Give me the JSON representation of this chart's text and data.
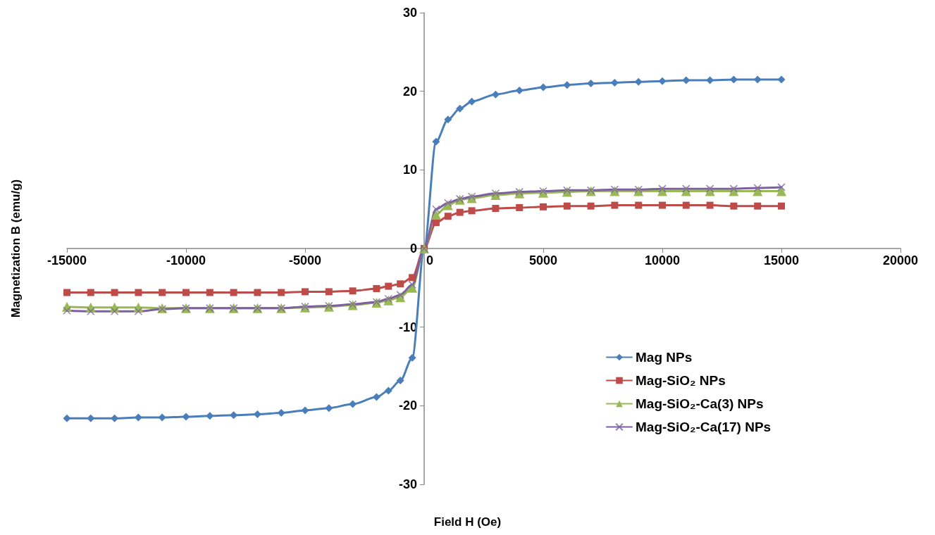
{
  "chart_data": {
    "type": "line",
    "xlabel": "Field H (Oe)",
    "ylabel": "Magnetization B (emu/g)",
    "x": [
      -15000,
      -14000,
      -13000,
      -12000,
      -11000,
      -10000,
      -9000,
      -8000,
      -7000,
      -6000,
      -5000,
      -4000,
      -3000,
      -2000,
      -1500,
      -1000,
      -500,
      0,
      500,
      1000,
      1500,
      2000,
      3000,
      4000,
      5000,
      6000,
      7000,
      8000,
      9000,
      10000,
      11000,
      12000,
      13000,
      14000,
      15000
    ],
    "series": [
      {
        "name": "Mag NPs",
        "color": "#4a7ebb",
        "marker": "diamond",
        "values": [
          -21.6,
          -21.6,
          -21.6,
          -21.5,
          -21.5,
          -21.4,
          -21.3,
          -21.2,
          -21.1,
          -20.9,
          -20.6,
          -20.3,
          -19.8,
          -18.9,
          -18.1,
          -16.8,
          -13.9,
          0,
          13.6,
          16.4,
          17.8,
          18.7,
          19.6,
          20.1,
          20.5,
          20.8,
          21.0,
          21.1,
          21.2,
          21.3,
          21.4,
          21.4,
          21.5,
          21.5,
          21.5
        ]
      },
      {
        "name": "Mag-SiO₂ NPs",
        "color": "#be4b48",
        "marker": "square",
        "values": [
          -5.6,
          -5.6,
          -5.6,
          -5.6,
          -5.6,
          -5.6,
          -5.6,
          -5.6,
          -5.6,
          -5.6,
          -5.5,
          -5.5,
          -5.4,
          -5.1,
          -4.8,
          -4.5,
          -3.7,
          0,
          3.3,
          4.1,
          4.6,
          4.8,
          5.1,
          5.2,
          5.3,
          5.4,
          5.4,
          5.5,
          5.5,
          5.5,
          5.5,
          5.5,
          5.4,
          5.4,
          5.4
        ]
      },
      {
        "name": "Mag-SiO₂-Ca(3) NPs",
        "color": "#98b954",
        "marker": "triangle",
        "values": [
          -7.4,
          -7.5,
          -7.5,
          -7.5,
          -7.6,
          -7.6,
          -7.6,
          -7.6,
          -7.6,
          -7.6,
          -7.5,
          -7.4,
          -7.2,
          -6.9,
          -6.6,
          -6.2,
          -5.0,
          0,
          4.3,
          5.5,
          6.2,
          6.4,
          6.8,
          7.0,
          7.1,
          7.2,
          7.3,
          7.3,
          7.3,
          7.3,
          7.3,
          7.3,
          7.3,
          7.3,
          7.3
        ]
      },
      {
        "name": "Mag-SiO₂-Ca(17) NPs",
        "color": "#7d60a0",
        "marker": "cross",
        "values": [
          -7.9,
          -8.0,
          -8.0,
          -8.0,
          -7.7,
          -7.6,
          -7.6,
          -7.6,
          -7.6,
          -7.6,
          -7.4,
          -7.3,
          -7.1,
          -6.8,
          -6.4,
          -5.9,
          -4.6,
          0,
          5.0,
          5.8,
          6.3,
          6.6,
          7.0,
          7.2,
          7.3,
          7.4,
          7.4,
          7.5,
          7.5,
          7.6,
          7.6,
          7.6,
          7.6,
          7.7,
          7.8
        ]
      }
    ],
    "xlim": [
      -15000,
      20000
    ],
    "xticks": [
      -15000,
      -10000,
      -5000,
      0,
      5000,
      10000,
      15000,
      20000
    ],
    "ylim": [
      -30,
      30
    ],
    "yticks": [
      -30,
      -20,
      -10,
      0,
      10,
      20,
      30
    ],
    "grid": false,
    "legend": "bottom right",
    "line_style": "solid"
  }
}
